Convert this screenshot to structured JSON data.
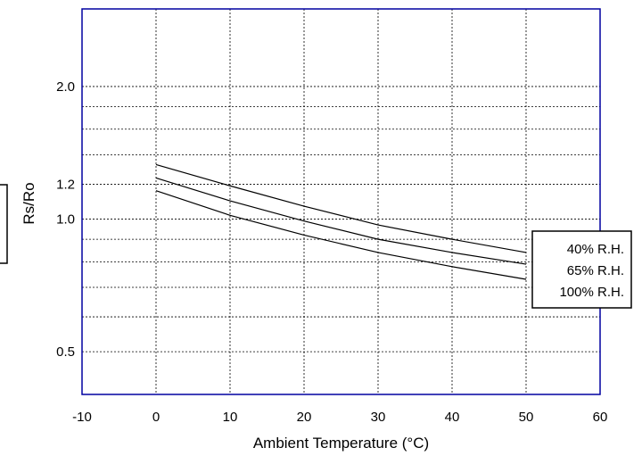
{
  "chart_data": {
    "type": "line",
    "title": "",
    "xlabel": "Ambient Temperature (°C)",
    "ylabel": "Rs/Ro",
    "y_scale": "log",
    "xlim": [
      -10,
      60
    ],
    "ylim": [
      0.4,
      3.0
    ],
    "grid": true,
    "x_ticks": [
      -10,
      0,
      10,
      20,
      30,
      40,
      50,
      60
    ],
    "x_tick_labels": [
      "-10",
      "0",
      "10",
      "20",
      "30",
      "40",
      "50",
      "60"
    ],
    "y_ticks": [
      0.5,
      1.0,
      1.2,
      2.0
    ],
    "y_tick_labels": [
      "0.5",
      "1.0",
      "1.2",
      "2.0"
    ],
    "y_minor_grid": [
      0.6,
      0.7,
      0.8,
      0.9,
      1.4,
      1.6,
      1.8
    ],
    "legend_position": "right",
    "x": [
      0,
      10,
      20,
      30,
      40,
      50
    ],
    "series": [
      {
        "name": "40% R.H.",
        "values": [
          1.33,
          1.19,
          1.07,
          0.97,
          0.9,
          0.84
        ]
      },
      {
        "name": "65% R.H.",
        "values": [
          1.24,
          1.1,
          0.99,
          0.9,
          0.84,
          0.79
        ]
      },
      {
        "name": "100% R.H.",
        "values": [
          1.16,
          1.02,
          0.92,
          0.84,
          0.78,
          0.73
        ]
      }
    ]
  }
}
